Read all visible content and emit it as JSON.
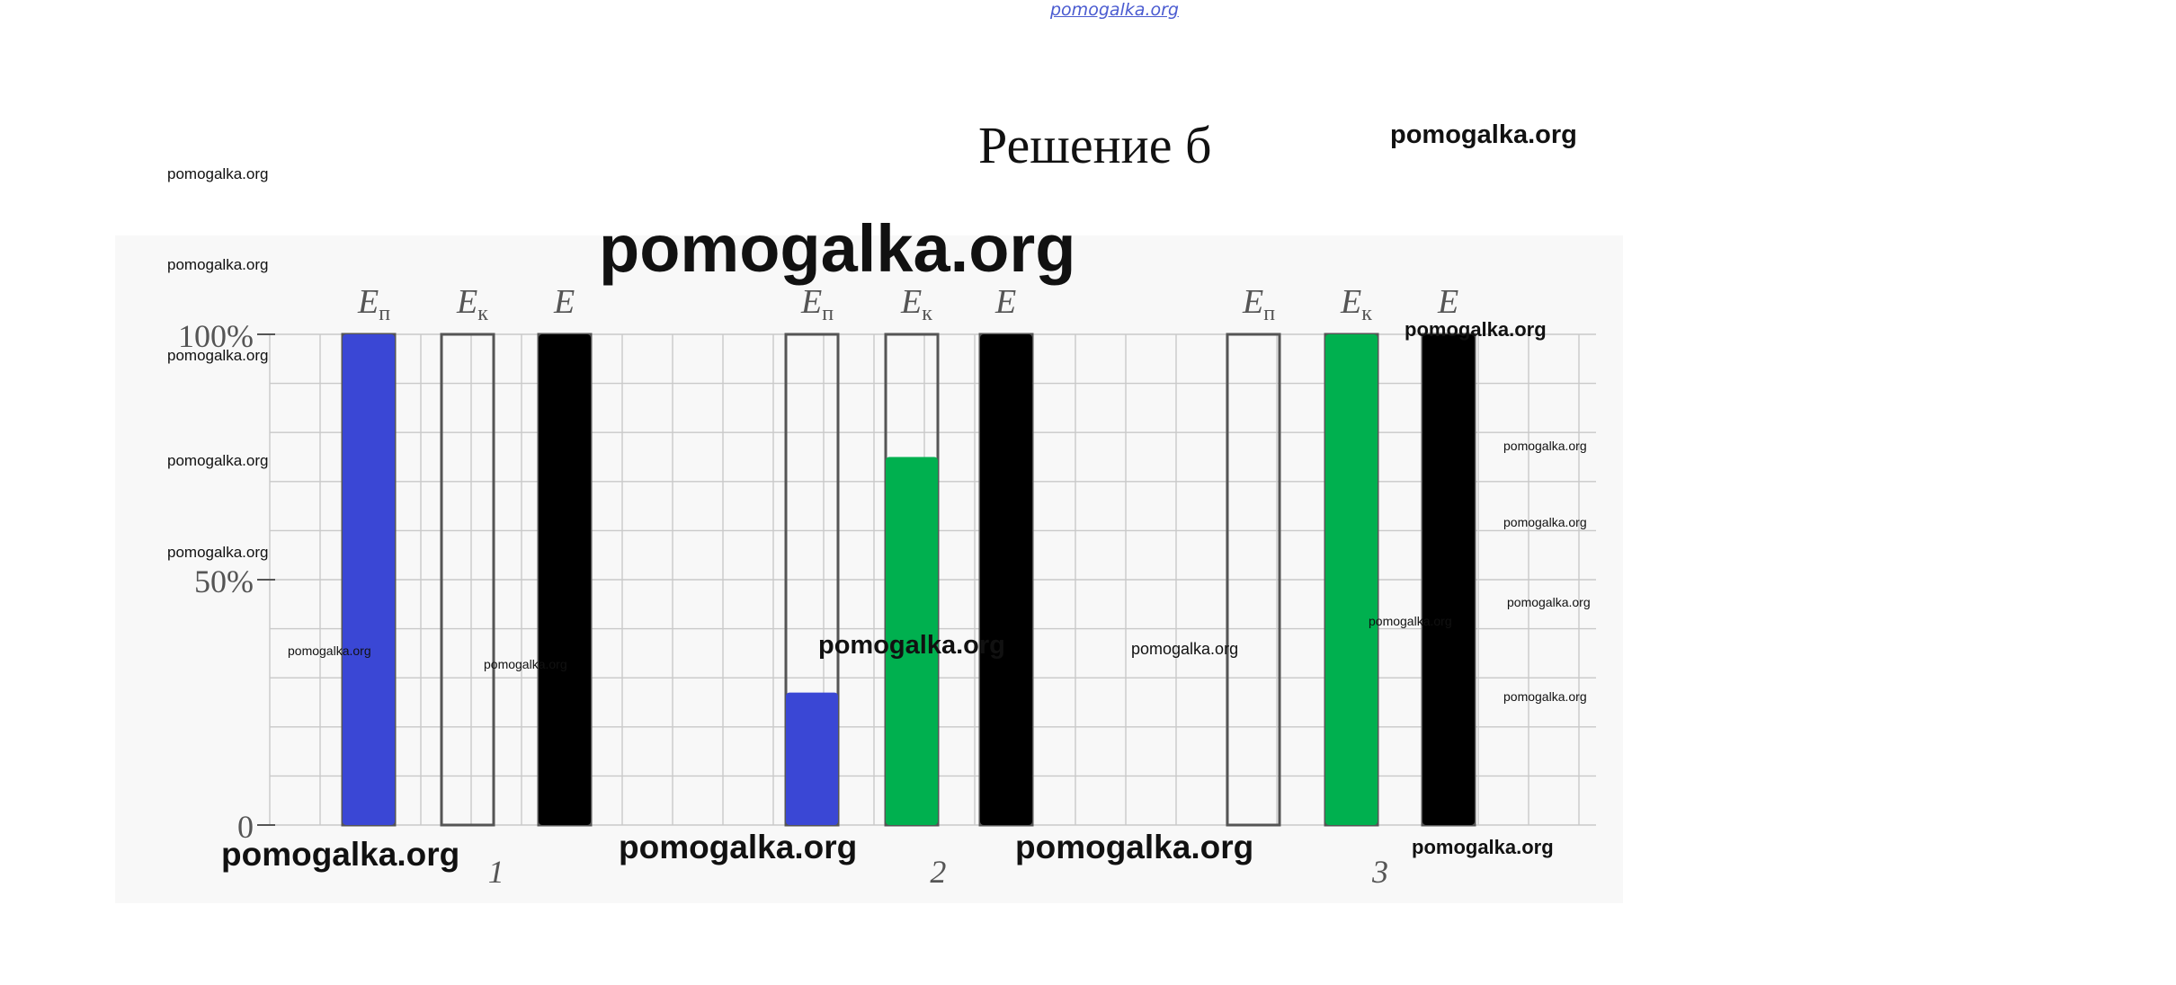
{
  "page": {
    "top_link": "pomogalka.org",
    "heading": "Решение б",
    "watermark": "pomogalka.org"
  },
  "chart_data": {
    "type": "bar",
    "title": "Решение б",
    "y_ticks": [
      "100%",
      "50%",
      "0"
    ],
    "ylim": [
      0,
      100
    ],
    "grid": true,
    "groups": [
      {
        "label": "1",
        "bars": [
          {
            "name": "Eп",
            "value": 100,
            "color": "#3a47d5"
          },
          {
            "name": "Eк",
            "value": 0,
            "color": "#00b04f"
          },
          {
            "name": "E",
            "value": 100,
            "color": "#000000"
          }
        ]
      },
      {
        "label": "2",
        "bars": [
          {
            "name": "Eп",
            "value": 27,
            "color": "#3a47d5"
          },
          {
            "name": "Eк",
            "value": 75,
            "color": "#00b04f"
          },
          {
            "name": "E",
            "value": 100,
            "color": "#000000"
          }
        ]
      },
      {
        "label": "3",
        "bars": [
          {
            "name": "Eп",
            "value": 0,
            "color": "#3a47d5"
          },
          {
            "name": "Eк",
            "value": 100,
            "color": "#00b04f"
          },
          {
            "name": "E",
            "value": 100,
            "color": "#000000"
          }
        ]
      }
    ]
  }
}
